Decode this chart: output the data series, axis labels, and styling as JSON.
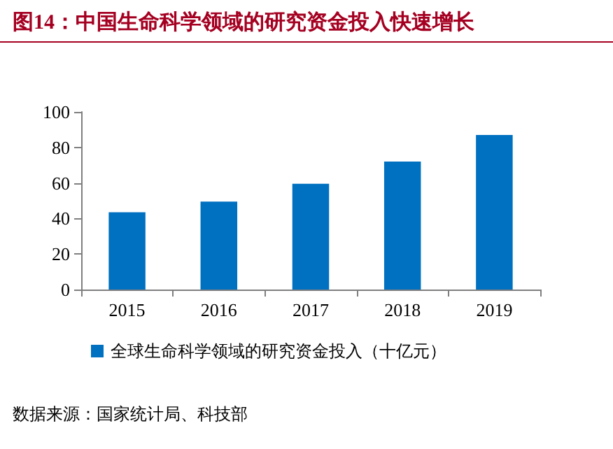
{
  "chart_data": {
    "type": "bar",
    "title": "图14：中国生命科学领域的研究资金投入快速增长",
    "categories": [
      "2015",
      "2016",
      "2017",
      "2018",
      "2019"
    ],
    "series": [
      {
        "name": "全球生命科学领域的研究资金投入（十亿元）",
        "color": "#0070c0",
        "values": [
          43.5,
          49.5,
          59.5,
          72,
          87
        ]
      }
    ],
    "ylim": [
      0,
      100
    ],
    "yticks": [
      0,
      20,
      40,
      60,
      80,
      100
    ],
    "grid": false,
    "legend": "bottom",
    "annotations": [
      "数据来源：国家统计局、科技部"
    ]
  }
}
